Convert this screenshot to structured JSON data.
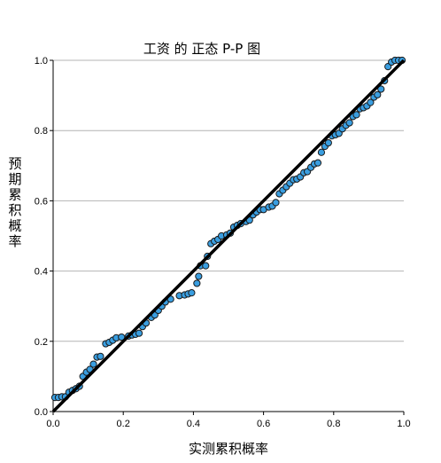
{
  "chart_data": {
    "type": "scatter",
    "title": "工资 的 正态 P-P 图",
    "xlabel": "实测累积概率",
    "ylabel": "预期累积概率",
    "xlim": [
      0,
      1
    ],
    "ylim": [
      0,
      1
    ],
    "x_ticks": [
      "0.0",
      "0.2",
      "0.4",
      "0.6",
      "0.8",
      "1.0"
    ],
    "y_ticks": [
      "0.0",
      "0.2",
      "0.4",
      "0.6",
      "0.8",
      "1.0"
    ],
    "grid": "horizontal",
    "reference_line": [
      [
        0,
        0
      ],
      [
        1,
        1
      ]
    ],
    "point_color": "#3a9ee0",
    "points": [
      [
        0.005,
        0.04
      ],
      [
        0.015,
        0.04
      ],
      [
        0.025,
        0.042
      ],
      [
        0.035,
        0.042
      ],
      [
        0.045,
        0.055
      ],
      [
        0.055,
        0.06
      ],
      [
        0.065,
        0.065
      ],
      [
        0.075,
        0.072
      ],
      [
        0.085,
        0.1
      ],
      [
        0.095,
        0.112
      ],
      [
        0.105,
        0.12
      ],
      [
        0.115,
        0.135
      ],
      [
        0.125,
        0.155
      ],
      [
        0.135,
        0.157
      ],
      [
        0.15,
        0.193
      ],
      [
        0.16,
        0.197
      ],
      [
        0.17,
        0.203
      ],
      [
        0.18,
        0.21
      ],
      [
        0.195,
        0.212
      ],
      [
        0.215,
        0.215
      ],
      [
        0.225,
        0.218
      ],
      [
        0.235,
        0.22
      ],
      [
        0.245,
        0.223
      ],
      [
        0.255,
        0.242
      ],
      [
        0.265,
        0.252
      ],
      [
        0.28,
        0.268
      ],
      [
        0.29,
        0.275
      ],
      [
        0.3,
        0.288
      ],
      [
        0.31,
        0.3
      ],
      [
        0.32,
        0.312
      ],
      [
        0.335,
        0.32
      ],
      [
        0.36,
        0.33
      ],
      [
        0.375,
        0.332
      ],
      [
        0.385,
        0.335
      ],
      [
        0.395,
        0.338
      ],
      [
        0.41,
        0.365
      ],
      [
        0.415,
        0.385
      ],
      [
        0.42,
        0.415
      ],
      [
        0.435,
        0.415
      ],
      [
        0.44,
        0.442
      ],
      [
        0.45,
        0.478
      ],
      [
        0.46,
        0.485
      ],
      [
        0.47,
        0.49
      ],
      [
        0.48,
        0.5
      ],
      [
        0.495,
        0.503
      ],
      [
        0.505,
        0.508
      ],
      [
        0.515,
        0.525
      ],
      [
        0.525,
        0.53
      ],
      [
        0.535,
        0.535
      ],
      [
        0.55,
        0.541
      ],
      [
        0.56,
        0.545
      ],
      [
        0.57,
        0.56
      ],
      [
        0.58,
        0.568
      ],
      [
        0.59,
        0.575
      ],
      [
        0.6,
        0.575
      ],
      [
        0.615,
        0.582
      ],
      [
        0.625,
        0.585
      ],
      [
        0.635,
        0.595
      ],
      [
        0.645,
        0.62
      ],
      [
        0.655,
        0.63
      ],
      [
        0.665,
        0.64
      ],
      [
        0.675,
        0.65
      ],
      [
        0.685,
        0.66
      ],
      [
        0.695,
        0.662
      ],
      [
        0.705,
        0.668
      ],
      [
        0.715,
        0.68
      ],
      [
        0.725,
        0.683
      ],
      [
        0.735,
        0.695
      ],
      [
        0.745,
        0.705
      ],
      [
        0.755,
        0.708
      ],
      [
        0.765,
        0.738
      ],
      [
        0.775,
        0.755
      ],
      [
        0.785,
        0.765
      ],
      [
        0.795,
        0.785
      ],
      [
        0.805,
        0.788
      ],
      [
        0.815,
        0.792
      ],
      [
        0.825,
        0.805
      ],
      [
        0.835,
        0.815
      ],
      [
        0.845,
        0.822
      ],
      [
        0.855,
        0.84
      ],
      [
        0.865,
        0.845
      ],
      [
        0.875,
        0.862
      ],
      [
        0.885,
        0.865
      ],
      [
        0.895,
        0.87
      ],
      [
        0.905,
        0.88
      ],
      [
        0.915,
        0.895
      ],
      [
        0.925,
        0.902
      ],
      [
        0.935,
        0.918
      ],
      [
        0.945,
        0.942
      ],
      [
        0.955,
        0.982
      ],
      [
        0.965,
        0.995
      ],
      [
        0.975,
        1.0
      ],
      [
        0.985,
        1.0
      ],
      [
        0.995,
        1.0
      ]
    ]
  }
}
